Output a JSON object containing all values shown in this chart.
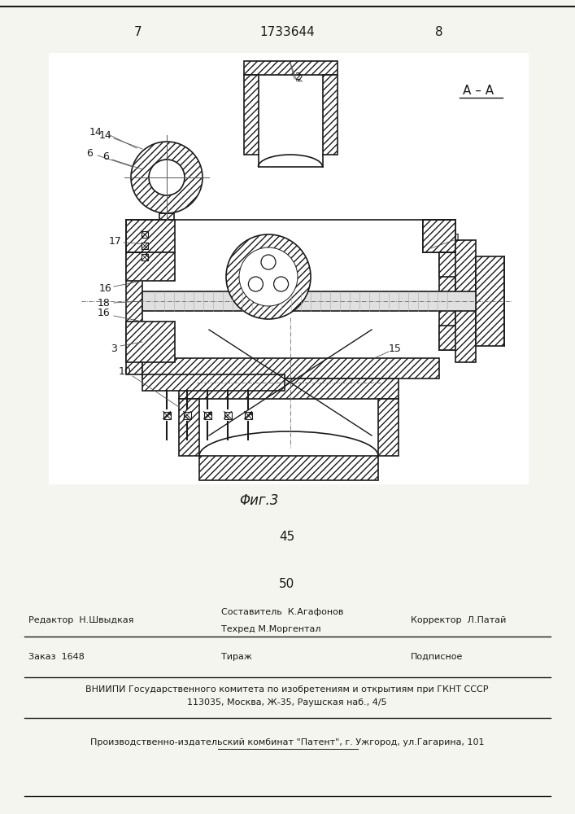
{
  "page_number_left": "7",
  "page_number_right": "8",
  "patent_number": "1733644",
  "figure_label": "Φиг.3",
  "number_45": "45",
  "number_50": "50",
  "editor_line": "Редактор  Н.Швыдкая",
  "composer_line": "Составитель  К.Агафонов",
  "techred_line": "Техред М.Моргентал",
  "corrector_line": "Корректор  Л.Патай",
  "zakaz_line": "Заказ  1648",
  "tirazh_line": "Тираж",
  "podpisnoe_line": "Подписное",
  "vniipи_line": "ВНИИПИ Государственного комитета по изобретениям и открытиям при ГКНТ СССР",
  "address_line": "113035, Москва, Ж-35, Раушская наб., 4/5",
  "publisher_line": "Производственно-издательский комбинат \"Патент\", г. Ужгород, ул.Гагарина, 101",
  "bg_color": "#f5f5f0",
  "line_color": "#1a1a1a",
  "text_color": "#1a1a1a"
}
